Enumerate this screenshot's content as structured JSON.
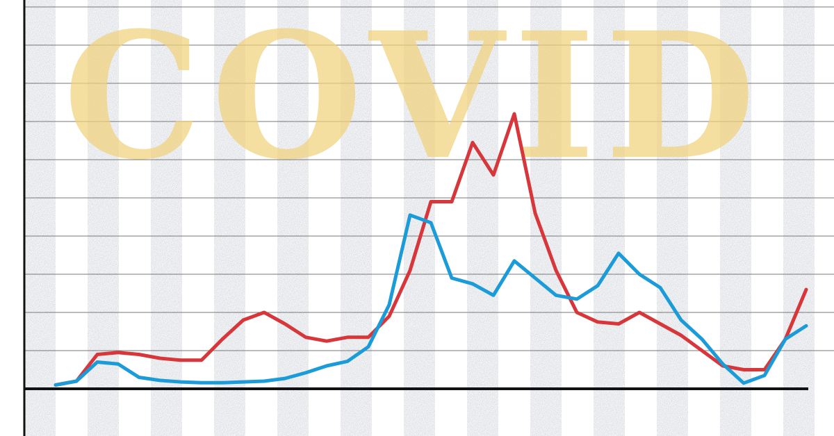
{
  "chart_data": {
    "type": "line",
    "title": "COVID",
    "x": [
      0,
      1,
      2,
      3,
      4,
      5,
      6,
      7,
      8,
      9,
      10,
      11,
      12,
      13,
      14,
      15,
      16,
      17,
      18,
      19,
      20,
      21,
      22,
      23,
      24,
      25,
      26,
      27,
      28,
      29,
      30,
      31,
      32,
      33,
      34,
      35,
      36
    ],
    "xlim": [
      0,
      36
    ],
    "ylim": [
      0,
      10
    ],
    "yticks": [
      0,
      1,
      2,
      3,
      4,
      5,
      6,
      7,
      8,
      9,
      10
    ],
    "grid": true,
    "series": [
      {
        "color": "#d7373b",
        "values": [
          0.1,
          0.2,
          0.9,
          0.95,
          0.9,
          0.8,
          0.75,
          0.75,
          1.3,
          1.8,
          2.0,
          1.7,
          1.35,
          1.25,
          1.35,
          1.35,
          1.9,
          3.1,
          4.9,
          4.9,
          6.45,
          5.6,
          7.2,
          4.6,
          3.1,
          2.0,
          1.75,
          1.7,
          2.0,
          1.7,
          1.4,
          1.0,
          0.6,
          0.5,
          0.5,
          1.3,
          2.6
        ]
      },
      {
        "color": "#1b9bd7",
        "values": [
          0.1,
          0.2,
          0.7,
          0.65,
          0.3,
          0.22,
          0.18,
          0.16,
          0.16,
          0.18,
          0.2,
          0.27,
          0.42,
          0.6,
          0.72,
          1.1,
          2.2,
          4.55,
          4.35,
          2.9,
          2.75,
          2.45,
          3.35,
          2.9,
          2.45,
          2.35,
          2.7,
          3.55,
          3.0,
          2.65,
          1.8,
          1.3,
          0.65,
          0.15,
          0.35,
          1.3,
          1.65
        ]
      }
    ]
  }
}
